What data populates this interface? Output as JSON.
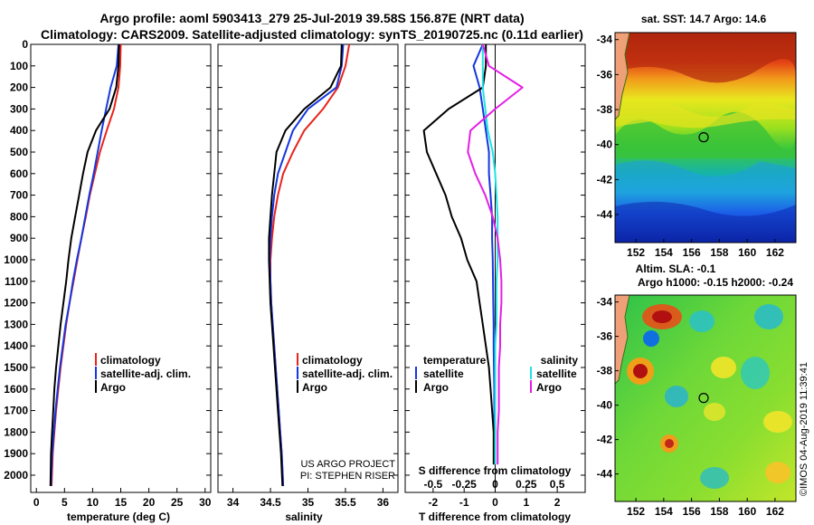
{
  "header": {
    "line1": "Argo profile: aoml 5903413_279 25-Jul-2019 39.58S 156.87E (NRT data)",
    "line2": "Climatology: CARS2009. Satellite-adjusted climatology: synTS_20190725.nc (0.11d earlier)"
  },
  "colors": {
    "climatology": "#e8231c",
    "satellite": "#1436e0",
    "argo": "#000000",
    "sal_sat": "#1ee3e3",
    "sal_argo": "#e51ee5"
  },
  "depth_ticks": [
    "0",
    "100",
    "200",
    "300",
    "400",
    "500",
    "600",
    "700",
    "800",
    "900",
    "1000",
    "1100",
    "1200",
    "1300",
    "1400",
    "1500",
    "1600",
    "1700",
    "1800",
    "1900",
    "2000"
  ],
  "credit": {
    "line1": "US ARGO PROJECT",
    "line2": "PI: STEPHEN RISER"
  },
  "maps": {
    "sst": {
      "title": "sat. SST: 14.7 Argo: 14.6",
      "y_ticks": [
        "-34",
        "-36",
        "-38",
        "-40",
        "-42",
        "-44"
      ],
      "x_ticks": [
        "152",
        "154",
        "156",
        "158",
        "160",
        "162"
      ]
    },
    "sla": {
      "title_line1": "Altim. SLA: -0.1",
      "title_line2": "Argo h1000: -0.15 h2000: -0.24",
      "y_ticks": [
        "-34",
        "-36",
        "-38",
        "-40",
        "-42",
        "-44"
      ],
      "x_ticks": [
        "152",
        "154",
        "156",
        "158",
        "160",
        "162"
      ]
    },
    "argo_position": {
      "lon": 156.87,
      "lat": -39.58
    }
  },
  "timestamp": "©IMOS 04-Aug-2019 11:39:41",
  "chart_data": [
    {
      "type": "line",
      "xlabel": "temperature (deg C)",
      "ylabel": "",
      "xlim": [
        -1,
        31
      ],
      "ylim": [
        2080,
        0
      ],
      "x_ticks": [
        "0",
        "5",
        "10",
        "15",
        "20",
        "25",
        "30"
      ],
      "legend": [
        "climatology",
        "satellite-adj. clim.",
        "Argo"
      ],
      "series": [
        {
          "name": "climatology",
          "color": "red",
          "x": [
            15.0,
            14.9,
            14.6,
            13.8,
            12.5,
            11.3,
            10.4,
            9.5,
            8.8,
            8.0,
            7.3,
            6.6,
            5.9,
            5.3,
            4.8,
            4.3,
            3.9,
            3.5,
            3.2,
            2.9,
            2.7
          ],
          "y": [
            0,
            100,
            200,
            300,
            400,
            500,
            600,
            700,
            800,
            900,
            1000,
            1100,
            1200,
            1300,
            1400,
            1500,
            1600,
            1700,
            1800,
            1900,
            2050
          ]
        },
        {
          "name": "satellite-adj. clim.",
          "color": "blue",
          "x": [
            14.6,
            14.3,
            13.2,
            12.4,
            11.6,
            10.9,
            10.2,
            9.4,
            8.7,
            8.0,
            7.2,
            6.5,
            5.9,
            5.2,
            4.7,
            4.2,
            3.8,
            3.4,
            3.1,
            2.8,
            2.6
          ],
          "y": [
            0,
            100,
            200,
            300,
            400,
            500,
            600,
            700,
            800,
            900,
            1000,
            1100,
            1200,
            1300,
            1400,
            1500,
            1600,
            1700,
            1800,
            1900,
            2050
          ]
        },
        {
          "name": "Argo",
          "color": "black",
          "x": [
            14.7,
            14.6,
            14.2,
            13.0,
            10.6,
            9.1,
            8.3,
            7.6,
            6.9,
            6.2,
            5.7,
            5.3,
            4.8,
            4.3,
            3.9,
            3.5,
            3.2,
            3.0,
            2.8,
            2.6,
            2.5
          ],
          "y": [
            0,
            100,
            200,
            300,
            400,
            500,
            600,
            700,
            800,
            900,
            1000,
            1100,
            1200,
            1300,
            1400,
            1500,
            1600,
            1700,
            1800,
            1900,
            2050
          ]
        }
      ]
    },
    {
      "type": "line",
      "xlabel": "salinity",
      "ylabel": "",
      "xlim": [
        33.8,
        36.2
      ],
      "ylim": [
        2080,
        0
      ],
      "x_ticks": [
        "34",
        "34.5",
        "35",
        "35.5",
        "36"
      ],
      "legend": [
        "climatology",
        "satellite-adj. clim.",
        "Argo"
      ],
      "series": [
        {
          "name": "climatology",
          "color": "red",
          "x": [
            35.55,
            35.5,
            35.4,
            35.2,
            34.95,
            34.8,
            34.67,
            34.6,
            34.55,
            34.52,
            34.5,
            34.5,
            34.51,
            34.53,
            34.55,
            34.57,
            34.59,
            34.61,
            34.63,
            34.65,
            34.67
          ],
          "y": [
            0,
            100,
            200,
            300,
            400,
            500,
            600,
            700,
            800,
            900,
            1000,
            1100,
            1200,
            1300,
            1400,
            1500,
            1600,
            1700,
            1800,
            1900,
            2050
          ]
        },
        {
          "name": "satellite-adj. clim.",
          "color": "blue",
          "x": [
            35.47,
            35.45,
            35.38,
            35.0,
            34.8,
            34.7,
            34.6,
            34.55,
            34.52,
            34.5,
            34.49,
            34.5,
            34.51,
            34.53,
            34.55,
            34.57,
            34.59,
            34.61,
            34.63,
            34.65,
            34.67
          ],
          "y": [
            0,
            100,
            200,
            300,
            400,
            500,
            600,
            700,
            800,
            900,
            1000,
            1100,
            1200,
            1300,
            1400,
            1500,
            1600,
            1700,
            1800,
            1900,
            2050
          ]
        },
        {
          "name": "Argo",
          "color": "black",
          "x": [
            35.45,
            35.44,
            35.3,
            34.95,
            34.7,
            34.58,
            34.55,
            34.52,
            34.5,
            34.48,
            34.48,
            34.49,
            34.5,
            34.52,
            34.54,
            34.56,
            34.58,
            34.6,
            34.62,
            34.64,
            34.66
          ],
          "y": [
            0,
            100,
            200,
            300,
            400,
            500,
            600,
            700,
            800,
            900,
            1000,
            1100,
            1200,
            1300,
            1400,
            1500,
            1600,
            1700,
            1800,
            1900,
            2050
          ]
        }
      ]
    },
    {
      "type": "line",
      "xlabel": "T difference from climatology",
      "ylabel": "",
      "xlim": [
        -2.9,
        2.9
      ],
      "ylim": [
        2080,
        0
      ],
      "x_ticks": [
        "-2",
        "-1",
        "0",
        "1",
        "2"
      ],
      "secondary_axis": {
        "label": "S difference from climatology",
        "ticks": [
          "-0.5",
          "-0.25",
          "0",
          "0.25",
          "0.5"
        ]
      },
      "legend": [
        {
          "group": "temperature",
          "items": [
            "satellite",
            "Argo"
          ]
        },
        {
          "group": "salinity",
          "items": [
            "satellite",
            "Argo"
          ]
        }
      ],
      "series": [
        {
          "name": "satellite",
          "group": "temperature",
          "color": "blue",
          "x": [
            -0.4,
            -0.7,
            -0.5,
            -0.4,
            -0.3,
            -0.2,
            -0.2,
            -0.15,
            -0.1,
            -0.1,
            -0.08,
            -0.07,
            -0.06,
            -0.05,
            -0.05,
            -0.04,
            -0.03,
            -0.03,
            -0.02,
            -0.02
          ],
          "y": [
            0,
            100,
            200,
            300,
            400,
            500,
            600,
            700,
            800,
            900,
            1000,
            1100,
            1200,
            1300,
            1400,
            1500,
            1600,
            1700,
            1800,
            1950
          ]
        },
        {
          "name": "Argo",
          "group": "temperature",
          "color": "black",
          "x": [
            -0.3,
            -0.3,
            -0.4,
            -1.5,
            -2.3,
            -2.2,
            -1.9,
            -1.6,
            -1.4,
            -1.1,
            -0.9,
            -0.6,
            -0.5,
            -0.4,
            -0.3,
            -0.2,
            -0.15,
            -0.1,
            -0.05,
            -0.05
          ],
          "y": [
            0,
            100,
            200,
            300,
            400,
            500,
            600,
            700,
            800,
            900,
            1000,
            1100,
            1200,
            1300,
            1400,
            1500,
            1600,
            1700,
            1800,
            1950
          ]
        },
        {
          "name": "satellite",
          "group": "salinity",
          "color": "cyan",
          "x": [
            -0.1,
            -0.1,
            -0.1,
            -0.08,
            -0.06,
            -0.02,
            0.0,
            0.01,
            0.02,
            0.02,
            0.02,
            0.01,
            0.01,
            0.01,
            0.0,
            0.0,
            0.0,
            0.0,
            0.0,
            0.0
          ],
          "y": [
            0,
            100,
            200,
            300,
            400,
            500,
            600,
            700,
            800,
            900,
            1000,
            1100,
            1200,
            1300,
            1400,
            1500,
            1600,
            1700,
            1800,
            1950
          ]
        },
        {
          "name": "Argo",
          "group": "salinity",
          "color": "magenta",
          "x": [
            -0.1,
            -0.05,
            0.22,
            0.0,
            -0.2,
            -0.22,
            -0.16,
            -0.08,
            -0.02,
            0.02,
            0.04,
            0.05,
            0.05,
            0.04,
            0.04,
            0.03,
            0.03,
            0.03,
            0.02,
            0.02
          ],
          "y": [
            0,
            100,
            200,
            300,
            400,
            500,
            600,
            700,
            800,
            900,
            1000,
            1100,
            1200,
            1300,
            1400,
            1500,
            1600,
            1700,
            1800,
            1950
          ]
        }
      ]
    }
  ]
}
